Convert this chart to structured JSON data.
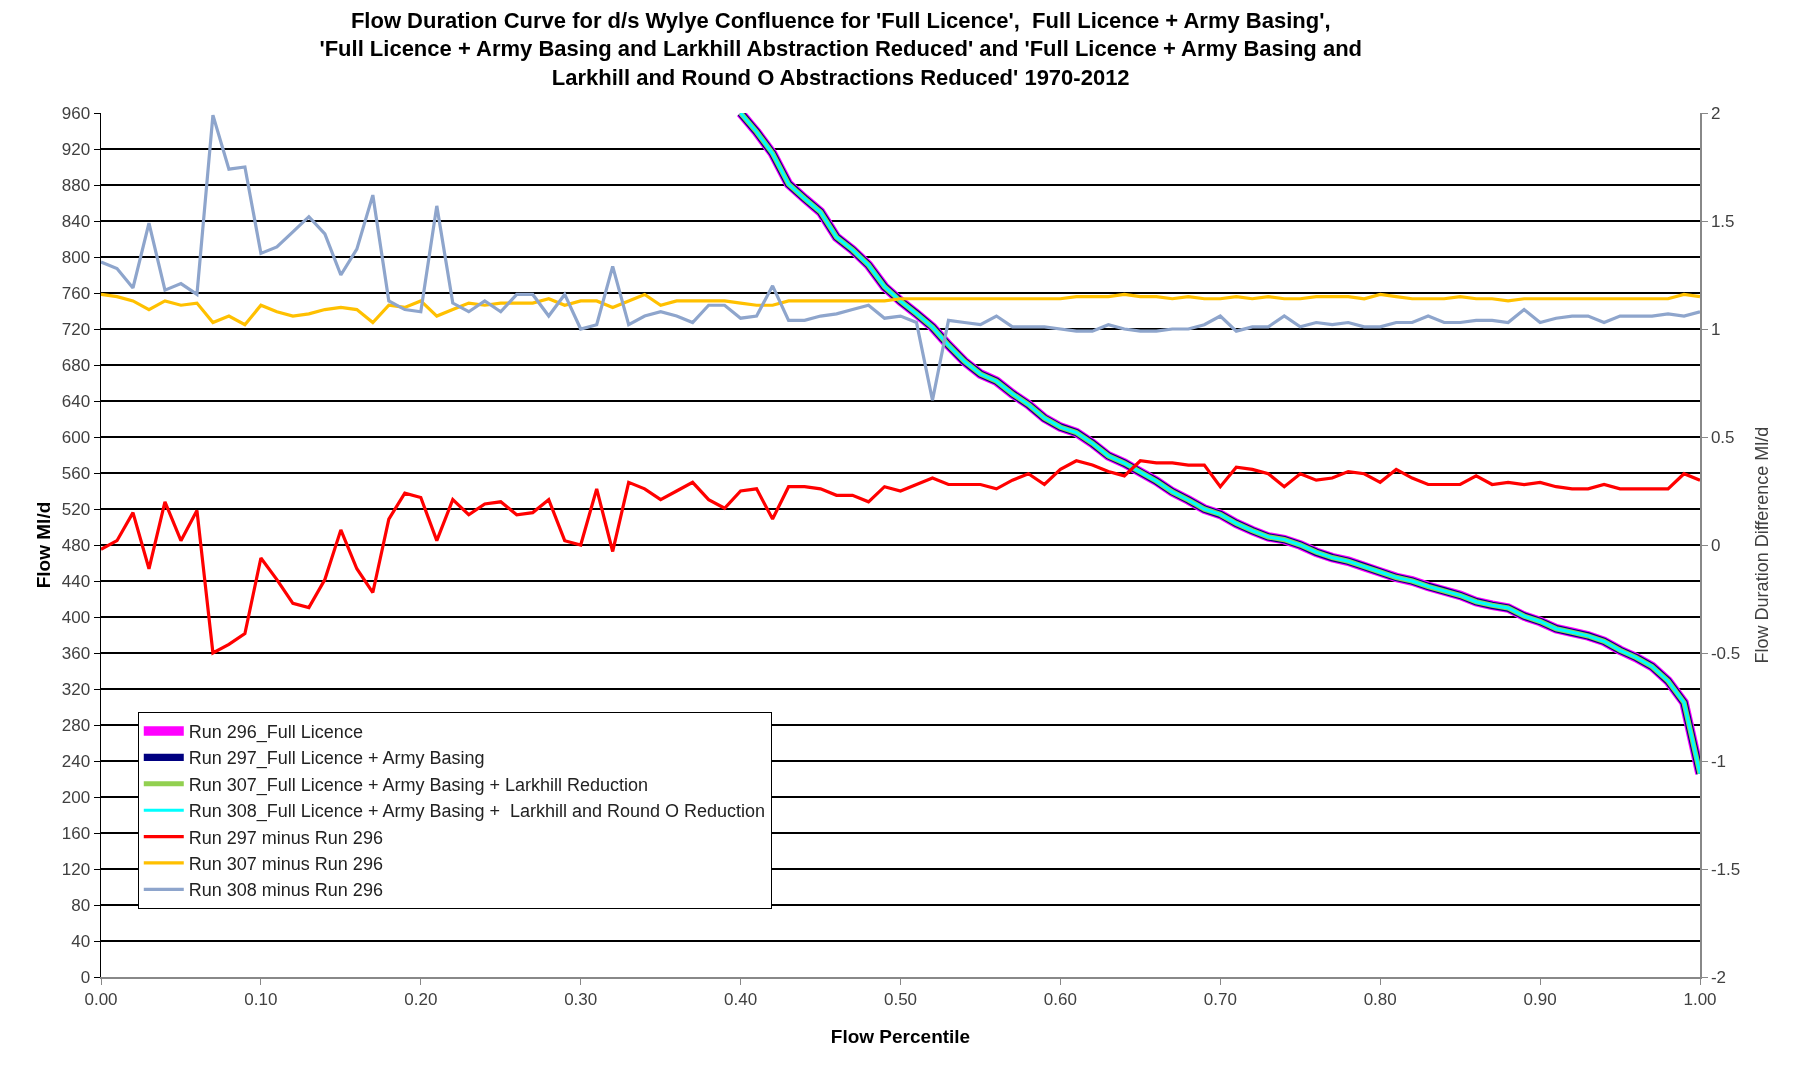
{
  "chart_data": {
    "type": "line",
    "title": "Flow Duration Curve for d/s Wylye Confluence for 'Full Licence',  Full Licence + Army Basing', 'Full Licence + Army Basing and Larkhill Abstraction Reduced' and 'Full Licence + Army Basing and Larkhill and Round O Abstractions Reduced' 1970-2012",
    "xlabel": "Flow Percentile",
    "ylabel": "Flow Ml/d",
    "y2label": "Flow Duration Difference Ml/d",
    "x": [
      0,
      0.01,
      0.02,
      0.03,
      0.04,
      0.05,
      0.06,
      0.07,
      0.08,
      0.09,
      0.1,
      0.11,
      0.12,
      0.13,
      0.14,
      0.15,
      0.16,
      0.17,
      0.18,
      0.19,
      0.2,
      0.21,
      0.22,
      0.23,
      0.24,
      0.25,
      0.26,
      0.27,
      0.28,
      0.29,
      0.3,
      0.31,
      0.32,
      0.33,
      0.34,
      0.35,
      0.36,
      0.37,
      0.38,
      0.39,
      0.4,
      0.41,
      0.42,
      0.43,
      0.44,
      0.45,
      0.46,
      0.47,
      0.48,
      0.49,
      0.5,
      0.51,
      0.52,
      0.53,
      0.54,
      0.55,
      0.56,
      0.57,
      0.58,
      0.59,
      0.6,
      0.61,
      0.62,
      0.63,
      0.64,
      0.65,
      0.66,
      0.67,
      0.68,
      0.69,
      0.7,
      0.71,
      0.72,
      0.73,
      0.74,
      0.75,
      0.76,
      0.77,
      0.78,
      0.79,
      0.8,
      0.81,
      0.82,
      0.83,
      0.84,
      0.85,
      0.86,
      0.87,
      0.88,
      0.89,
      0.9,
      0.91,
      0.92,
      0.93,
      0.94,
      0.95,
      0.96,
      0.97,
      0.98,
      0.99,
      1
    ],
    "series": [
      {
        "name": "Run 296_Full Licence",
        "color": "#ff00ff",
        "x": [
          0.4,
          0.41,
          0.42,
          0.43,
          0.44,
          0.45,
          0.46,
          0.47,
          0.48,
          0.49,
          0.5,
          0.51,
          0.52,
          0.53,
          0.54,
          0.55,
          0.56,
          0.57,
          0.58,
          0.59,
          0.6,
          0.61,
          0.62,
          0.63,
          0.64,
          0.65,
          0.66,
          0.67,
          0.68,
          0.69,
          0.7,
          0.71,
          0.72,
          0.73,
          0.74,
          0.75,
          0.76,
          0.77,
          0.78,
          0.79,
          0.8,
          0.81,
          0.82,
          0.83,
          0.84,
          0.85,
          0.86,
          0.87,
          0.88,
          0.89,
          0.9,
          0.91,
          0.92,
          0.93,
          0.94,
          0.95,
          0.96,
          0.97,
          0.98,
          0.99,
          1
        ],
        "values": [
          960,
          939,
          915,
          881,
          865,
          850,
          822,
          808,
          791,
          767,
          751,
          737,
          722,
          702,
          684,
          670,
          662,
          648,
          636,
          621,
          611,
          605,
          593,
          579,
          571,
          561,
          551,
          539,
          530,
          520,
          514,
          504,
          496,
          489,
          486,
          480,
          472,
          466,
          462,
          456,
          450,
          444,
          440,
          434,
          429,
          424,
          417,
          413,
          410,
          401,
          395,
          387,
          383,
          379,
          373,
          363,
          355,
          345,
          329,
          305,
          226
        ]
      },
      {
        "name": "Run 297_Full Licence + Army Basing",
        "color": "#000080",
        "x": [
          0.4,
          0.41,
          0.42,
          0.43,
          0.44,
          0.45,
          0.46,
          0.47,
          0.48,
          0.49,
          0.5,
          0.51,
          0.52,
          0.53,
          0.54,
          0.55,
          0.56,
          0.57,
          0.58,
          0.59,
          0.6,
          0.61,
          0.62,
          0.63,
          0.64,
          0.65,
          0.66,
          0.67,
          0.68,
          0.69,
          0.7,
          0.71,
          0.72,
          0.73,
          0.74,
          0.75,
          0.76,
          0.77,
          0.78,
          0.79,
          0.8,
          0.81,
          0.82,
          0.83,
          0.84,
          0.85,
          0.86,
          0.87,
          0.88,
          0.89,
          0.9,
          0.91,
          0.92,
          0.93,
          0.94,
          0.95,
          0.96,
          0.97,
          0.98,
          0.99,
          1
        ],
        "values": [
          960,
          939,
          915,
          881,
          865,
          850,
          822,
          808,
          791,
          767,
          751,
          737,
          722,
          702,
          684,
          670,
          662,
          648,
          636,
          621,
          611,
          605,
          593,
          579,
          571,
          561,
          551,
          539,
          530,
          520,
          514,
          504,
          496,
          489,
          486,
          480,
          472,
          466,
          462,
          456,
          450,
          444,
          440,
          434,
          429,
          424,
          417,
          413,
          410,
          401,
          395,
          387,
          383,
          379,
          373,
          363,
          355,
          345,
          329,
          305,
          226
        ]
      },
      {
        "name": "Run 307_Full Licence + Army Basing + Larkhill Reduction",
        "color": "#92d050",
        "x": [
          0.4,
          0.41,
          0.42,
          0.43,
          0.44,
          0.45,
          0.46,
          0.47,
          0.48,
          0.49,
          0.5,
          0.51,
          0.52,
          0.53,
          0.54,
          0.55,
          0.56,
          0.57,
          0.58,
          0.59,
          0.6,
          0.61,
          0.62,
          0.63,
          0.64,
          0.65,
          0.66,
          0.67,
          0.68,
          0.69,
          0.7,
          0.71,
          0.72,
          0.73,
          0.74,
          0.75,
          0.76,
          0.77,
          0.78,
          0.79,
          0.8,
          0.81,
          0.82,
          0.83,
          0.84,
          0.85,
          0.86,
          0.87,
          0.88,
          0.89,
          0.9,
          0.91,
          0.92,
          0.93,
          0.94,
          0.95,
          0.96,
          0.97,
          0.98,
          0.99,
          1
        ],
        "values": [
          960,
          939,
          915,
          881,
          865,
          850,
          822,
          808,
          791,
          767,
          751,
          737,
          722,
          702,
          684,
          670,
          662,
          648,
          636,
          621,
          611,
          605,
          593,
          579,
          571,
          561,
          551,
          539,
          530,
          520,
          514,
          504,
          496,
          489,
          486,
          480,
          472,
          466,
          462,
          456,
          450,
          444,
          440,
          434,
          429,
          424,
          417,
          413,
          410,
          401,
          395,
          387,
          383,
          379,
          373,
          363,
          355,
          345,
          329,
          305,
          226
        ]
      },
      {
        "name": "Run 308_Full Licence + Army Basing +  Larkhill and Round O Reduction",
        "color": "#00ffff",
        "x": [
          0.4,
          0.41,
          0.42,
          0.43,
          0.44,
          0.45,
          0.46,
          0.47,
          0.48,
          0.49,
          0.5,
          0.51,
          0.52,
          0.53,
          0.54,
          0.55,
          0.56,
          0.57,
          0.58,
          0.59,
          0.6,
          0.61,
          0.62,
          0.63,
          0.64,
          0.65,
          0.66,
          0.67,
          0.68,
          0.69,
          0.7,
          0.71,
          0.72,
          0.73,
          0.74,
          0.75,
          0.76,
          0.77,
          0.78,
          0.79,
          0.8,
          0.81,
          0.82,
          0.83,
          0.84,
          0.85,
          0.86,
          0.87,
          0.88,
          0.89,
          0.9,
          0.91,
          0.92,
          0.93,
          0.94,
          0.95,
          0.96,
          0.97,
          0.98,
          0.99,
          1
        ],
        "values": [
          960,
          939,
          915,
          881,
          865,
          850,
          822,
          808,
          791,
          767,
          751,
          737,
          722,
          702,
          684,
          670,
          662,
          648,
          636,
          621,
          611,
          605,
          593,
          579,
          571,
          561,
          551,
          539,
          530,
          520,
          514,
          504,
          496,
          489,
          486,
          480,
          472,
          466,
          462,
          456,
          450,
          444,
          440,
          434,
          429,
          424,
          417,
          413,
          410,
          401,
          395,
          387,
          383,
          379,
          373,
          363,
          355,
          345,
          329,
          305,
          226
        ]
      },
      {
        "name": "Run 297 minus Run 296",
        "color": "#ff0000",
        "axis": "y2",
        "values": [
          -0.02,
          0.02,
          0.15,
          -0.11,
          0.2,
          0.02,
          0.16,
          -0.5,
          -0.46,
          -0.41,
          -0.06,
          -0.16,
          -0.27,
          -0.29,
          -0.16,
          0.07,
          -0.11,
          -0.22,
          0.12,
          0.24,
          0.22,
          0.02,
          0.21,
          0.14,
          0.19,
          0.2,
          0.14,
          0.15,
          0.21,
          0.02,
          0,
          0.26,
          -0.03,
          0.29,
          0.26,
          0.21,
          0.25,
          0.29,
          0.21,
          0.17,
          0.25,
          0.26,
          0.12,
          0.27,
          0.27,
          0.26,
          0.23,
          0.23,
          0.2,
          0.27,
          0.25,
          0.28,
          0.31,
          0.28,
          0.28,
          0.28,
          0.26,
          0.3,
          0.33,
          0.28,
          0.35,
          0.39,
          0.37,
          0.34,
          0.32,
          0.39,
          0.38,
          0.38,
          0.37,
          0.37,
          0.27,
          0.36,
          0.35,
          0.33,
          0.27,
          0.33,
          0.3,
          0.31,
          0.34,
          0.33,
          0.29,
          0.35,
          0.31,
          0.28,
          0.28,
          0.28,
          0.32,
          0.28,
          0.29,
          0.28,
          0.29,
          0.27,
          0.26,
          0.26,
          0.28,
          0.26,
          0.26,
          0.26,
          0.26,
          0.33,
          0.3
        ]
      },
      {
        "name": "Run 307 minus Run 296",
        "color": "#ffc000",
        "axis": "y2",
        "values": [
          1.16,
          1.15,
          1.13,
          1.09,
          1.13,
          1.11,
          1.12,
          1.03,
          1.06,
          1.02,
          1.11,
          1.08,
          1.06,
          1.07,
          1.09,
          1.1,
          1.09,
          1.03,
          1.11,
          1.1,
          1.13,
          1.06,
          1.09,
          1.12,
          1.11,
          1.12,
          1.12,
          1.12,
          1.14,
          1.11,
          1.13,
          1.13,
          1.1,
          1.13,
          1.16,
          1.11,
          1.13,
          1.13,
          1.13,
          1.13,
          1.12,
          1.11,
          1.11,
          1.13,
          1.13,
          1.13,
          1.13,
          1.13,
          1.13,
          1.13,
          1.14,
          1.14,
          1.14,
          1.14,
          1.14,
          1.14,
          1.14,
          1.14,
          1.14,
          1.14,
          1.14,
          1.15,
          1.15,
          1.15,
          1.16,
          1.15,
          1.15,
          1.14,
          1.15,
          1.14,
          1.14,
          1.15,
          1.14,
          1.15,
          1.14,
          1.14,
          1.15,
          1.15,
          1.15,
          1.14,
          1.16,
          1.15,
          1.14,
          1.14,
          1.14,
          1.15,
          1.14,
          1.14,
          1.13,
          1.14,
          1.14,
          1.14,
          1.14,
          1.14,
          1.14,
          1.14,
          1.14,
          1.14,
          1.14,
          1.16,
          1.15
        ]
      },
      {
        "name": "Run 308 minus Run 296",
        "color": "#8ea5cc",
        "axis": "y2",
        "values": [
          1.31,
          1.28,
          1.19,
          1.49,
          1.18,
          1.21,
          1.16,
          1.99,
          1.74,
          1.75,
          1.35,
          1.38,
          1.45,
          1.52,
          1.44,
          1.25,
          1.37,
          1.62,
          1.13,
          1.09,
          1.08,
          1.57,
          1.12,
          1.08,
          1.13,
          1.08,
          1.16,
          1.16,
          1.06,
          1.16,
          1,
          1.02,
          1.29,
          1.02,
          1.06,
          1.08,
          1.06,
          1.03,
          1.11,
          1.11,
          1.05,
          1.06,
          1.2,
          1.04,
          1.04,
          1.06,
          1.07,
          1.09,
          1.11,
          1.05,
          1.06,
          1.03,
          0.67,
          1.04,
          1.03,
          1.02,
          1.06,
          1.01,
          1.01,
          1.01,
          1,
          0.99,
          0.99,
          1.02,
          1,
          0.99,
          0.99,
          1,
          1,
          1.02,
          1.06,
          0.99,
          1.01,
          1.01,
          1.06,
          1.01,
          1.03,
          1.02,
          1.03,
          1.01,
          1.01,
          1.03,
          1.03,
          1.06,
          1.03,
          1.03,
          1.04,
          1.04,
          1.03,
          1.09,
          1.03,
          1.05,
          1.06,
          1.06,
          1.03,
          1.06,
          1.06,
          1.06,
          1.07,
          1.06,
          1.08
        ]
      }
    ],
    "xlim": [
      0,
      1
    ],
    "xticks": [
      {
        "value": 0,
        "label": "0.00"
      },
      {
        "value": 0.1,
        "label": "0.10"
      },
      {
        "value": 0.2,
        "label": "0.20"
      },
      {
        "value": 0.3,
        "label": "0.30"
      },
      {
        "value": 0.4,
        "label": "0.40"
      },
      {
        "value": 0.5,
        "label": "0.50"
      },
      {
        "value": 0.6,
        "label": "0.60"
      },
      {
        "value": 0.7,
        "label": "0.70"
      },
      {
        "value": 0.8,
        "label": "0.80"
      },
      {
        "value": 0.9,
        "label": "0.90"
      },
      {
        "value": 1,
        "label": "1.00"
      }
    ],
    "ylim": [
      0,
      960
    ],
    "yticks": [
      0,
      40,
      80,
      120,
      160,
      200,
      240,
      280,
      320,
      360,
      400,
      440,
      480,
      520,
      560,
      600,
      640,
      680,
      720,
      760,
      800,
      840,
      880,
      920,
      960
    ],
    "y2lim": [
      -2,
      2
    ],
    "y2ticks": [
      -2,
      -1.5,
      -1,
      -0.5,
      0,
      0.5,
      1,
      1.5,
      2
    ],
    "grid": "y",
    "legend": "bottom left",
    "marker": "none",
    "line_style": "solid"
  }
}
